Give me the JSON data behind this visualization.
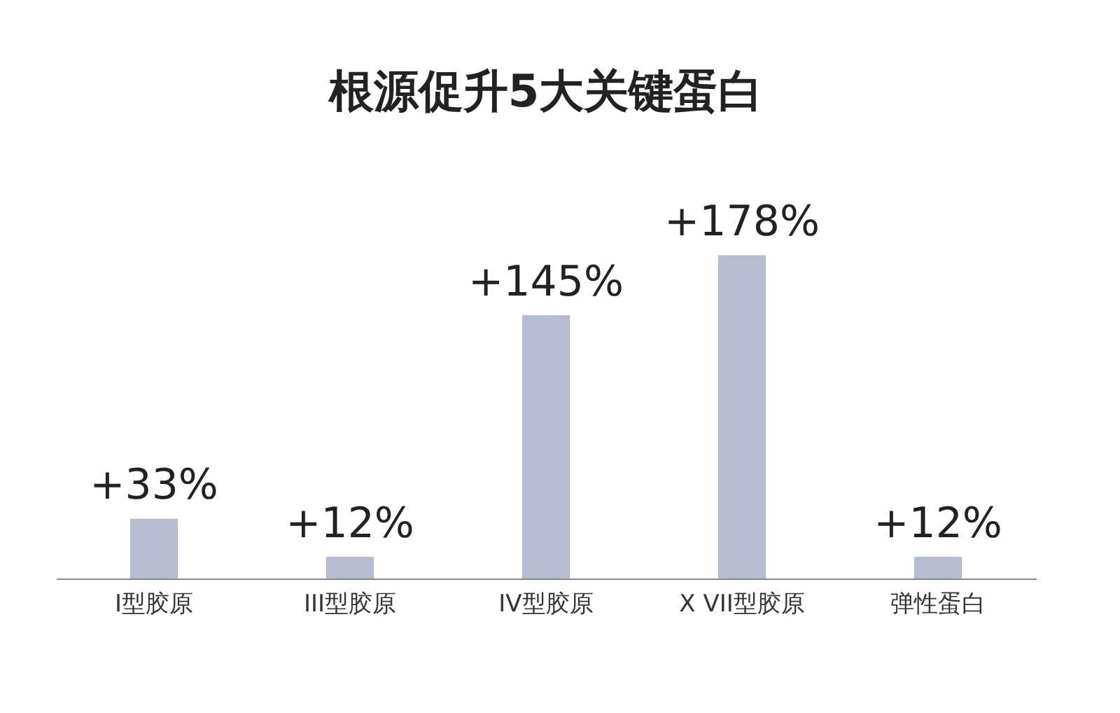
{
  "chart_data": {
    "type": "bar",
    "title": "根源促升5大关键蛋白",
    "categories": [
      "I型胶原",
      "III型胶原",
      "IV型胶原",
      "X VII型胶原",
      "弹性蛋白"
    ],
    "values": [
      33,
      12,
      145,
      178,
      12
    ],
    "value_labels": [
      "+33%",
      "+12%",
      "+145%",
      "+178%",
      "+12%"
    ],
    "color": "#b7bdd0"
  }
}
